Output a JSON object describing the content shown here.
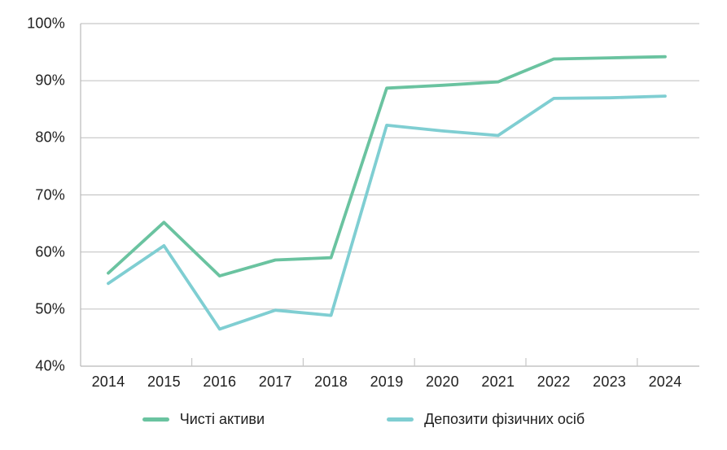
{
  "chart_data": {
    "type": "line",
    "title": "",
    "xlabel": "",
    "ylabel": "",
    "x": [
      "2014",
      "2015",
      "2016",
      "2017",
      "2018",
      "2019",
      "2020",
      "2021",
      "2022",
      "2023",
      "2024"
    ],
    "series": [
      {
        "name": "Чисті активи",
        "color": "#6ac3a0",
        "values": [
          56.3,
          65.2,
          55.8,
          58.6,
          59.0,
          88.7,
          89.2,
          89.8,
          93.8,
          94.0,
          94.2
        ]
      },
      {
        "name": "Депозити фізичних осіб",
        "color": "#7fced2",
        "values": [
          54.5,
          61.1,
          46.5,
          49.8,
          48.9,
          82.2,
          81.2,
          80.4,
          86.9,
          87.0,
          87.3
        ]
      }
    ],
    "ylim": [
      40,
      100
    ],
    "y_tick_values": [
      100,
      90,
      80,
      70,
      60,
      50,
      40
    ],
    "y_tick_labels": [
      "100%",
      "90%",
      "80%",
      "70%",
      "60%",
      "50%",
      "40%"
    ],
    "grid": "horizontal",
    "legend_position": "bottom"
  },
  "colors": {
    "grid": "#c6c6c6",
    "axis": "#b9b9b9",
    "text": "#1f1f1f",
    "background": "#ffffff"
  }
}
